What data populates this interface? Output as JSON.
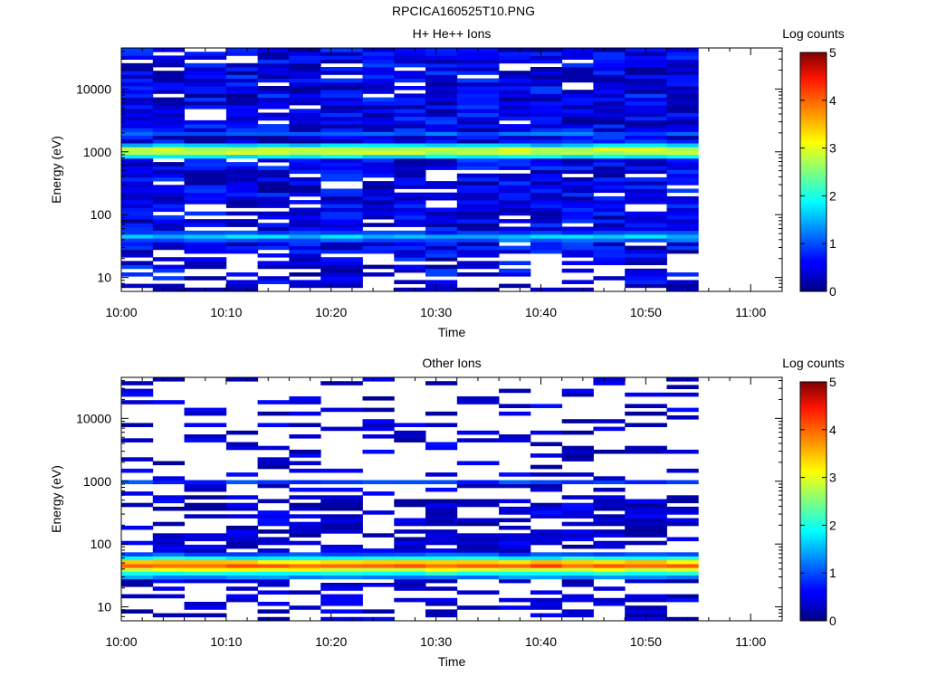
{
  "page_title": "RPCICA160525T10.PNG",
  "chart_data": [
    {
      "type": "heatmap",
      "title": "H+ He++ Ions",
      "xlabel": "Time",
      "ylabel": "Energy (eV)",
      "y_scale": "log",
      "ylim": [
        6,
        45000
      ],
      "xlim": [
        "10:00",
        "11:03"
      ],
      "x_ticks": [
        "10:00",
        "10:10",
        "10:20",
        "10:30",
        "10:40",
        "10:50",
        "11:00"
      ],
      "y_ticks": [
        "10",
        "100",
        "1000",
        "10000"
      ],
      "colorbar": {
        "label": "Log counts",
        "range": [
          0,
          5
        ],
        "ticks": [
          "0",
          "1",
          "2",
          "3",
          "4",
          "5"
        ],
        "colormap": "jet"
      },
      "time_columns": [
        "10:00",
        "10:03",
        "10:06",
        "10:10",
        "10:13",
        "10:16",
        "10:19",
        "10:23",
        "10:26",
        "10:29",
        "10:32",
        "10:36",
        "10:39",
        "10:42",
        "10:45",
        "10:48",
        "10:52"
      ],
      "data_end_time": "10:55",
      "bands": [
        {
          "energy_eV": [
            850,
            1150
          ],
          "log_counts": 2.8
        },
        {
          "energy_eV": [
            750,
            850
          ],
          "log_counts": 1.8
        },
        {
          "energy_eV": [
            1150,
            1300
          ],
          "log_counts": 1.6
        },
        {
          "energy_eV": [
            1800,
            2200
          ],
          "log_counts": 1.1
        },
        {
          "energy_eV": [
            40,
            48
          ],
          "log_counts": 1.6
        },
        {
          "energy_eV": [
            35,
            40
          ],
          "log_counts": 1.1
        },
        {
          "energy_eV": [
            48,
            56
          ],
          "log_counts": 0.9
        }
      ],
      "background_log_counts": "0.1-0.9"
    },
    {
      "type": "heatmap",
      "title": "Other Ions",
      "xlabel": "Time",
      "ylabel": "Energy (eV)",
      "y_scale": "log",
      "ylim": [
        6,
        45000
      ],
      "xlim": [
        "10:00",
        "11:03"
      ],
      "x_ticks": [
        "10:00",
        "10:10",
        "10:20",
        "10:30",
        "10:40",
        "10:50",
        "11:00"
      ],
      "y_ticks": [
        "10",
        "100",
        "1000",
        "10000"
      ],
      "colorbar": {
        "label": "Log counts",
        "range": [
          0,
          5
        ],
        "ticks": [
          "0",
          "1",
          "2",
          "3",
          "4",
          "5"
        ],
        "colormap": "jet"
      },
      "time_columns": [
        "10:00",
        "10:03",
        "10:06",
        "10:10",
        "10:13",
        "10:16",
        "10:19",
        "10:23",
        "10:26",
        "10:29",
        "10:32",
        "10:36",
        "10:39",
        "10:42",
        "10:45",
        "10:48",
        "10:52"
      ],
      "data_end_time": "10:55",
      "bands": [
        {
          "energy_eV": [
            42,
            50
          ],
          "log_counts": 3.9
        },
        {
          "energy_eV": [
            50,
            56
          ],
          "log_counts": 3.3
        },
        {
          "energy_eV": [
            37,
            42
          ],
          "log_counts": 3.0
        },
        {
          "energy_eV": [
            33,
            37
          ],
          "log_counts": 2.0
        },
        {
          "energy_eV": [
            56,
            64
          ],
          "log_counts": 1.9
        },
        {
          "energy_eV": [
            29,
            33
          ],
          "log_counts": 1.3
        },
        {
          "energy_eV": [
            64,
            75
          ],
          "log_counts": 1.0
        },
        {
          "energy_eV": [
            920,
            1080
          ],
          "log_counts": 0.9
        }
      ],
      "background_log_counts": "0.1-0.7"
    }
  ]
}
